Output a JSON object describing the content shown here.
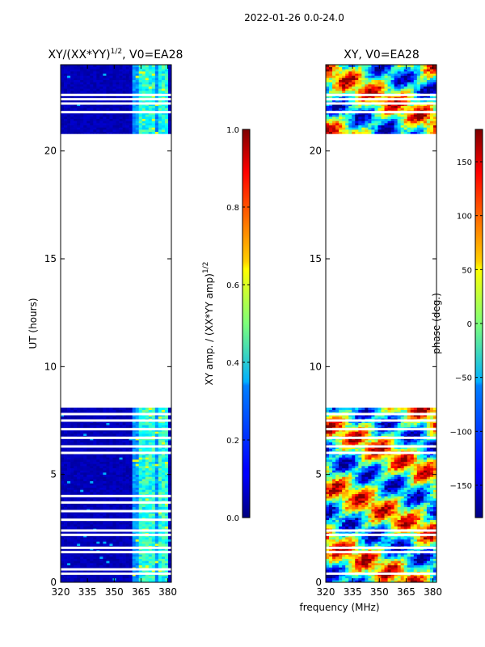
{
  "figure_title": "2022-01-26 0.0-24.0",
  "chart_data": [
    {
      "type": "heatmap",
      "title_main": "XY/(XX*YY)",
      "title_sup": "1/2",
      "title_tail": ", V0=EA28",
      "xlabel": "frequency (MHz)",
      "ylabel": "UT (hours)",
      "xlim": [
        320,
        382
      ],
      "ylim": [
        0,
        24
      ],
      "xticks": [
        "320",
        "335",
        "350",
        "365",
        "380"
      ],
      "yticks": [
        "0",
        "5",
        "10",
        "15",
        "20"
      ],
      "data_segments_ut_hours": [
        [
          0.0,
          8.1
        ],
        [
          20.8,
          24.0
        ]
      ],
      "blank_rows_ut_hours": [
        0.4,
        0.6,
        1.4,
        1.6,
        2.2,
        2.4,
        2.9,
        3.3,
        3.7,
        4.0,
        6.0,
        6.3,
        6.7,
        7.1,
        7.5,
        7.8,
        21.8,
        22.2,
        22.4,
        22.6
      ],
      "high_amplitude_band_mhz": [
        360,
        380
      ],
      "colorbar": {
        "label_main": "XY amp. / (XX*YY amp)",
        "label_sup": "1/2",
        "range": [
          0.0,
          1.0
        ],
        "ticks": [
          "0.0",
          "0.2",
          "0.4",
          "0.6",
          "0.8",
          "1.0"
        ],
        "colormap": "jet"
      }
    },
    {
      "type": "heatmap",
      "title": "XY, V0=EA28",
      "xlim": [
        320,
        382
      ],
      "ylim": [
        0,
        24
      ],
      "xticks": [
        "320",
        "335",
        "350",
        "365",
        "380"
      ],
      "yticks": [
        "0",
        "5",
        "10",
        "15",
        "20"
      ],
      "data_segments_ut_hours": [
        [
          0.0,
          8.1
        ],
        [
          20.8,
          24.0
        ]
      ],
      "blank_rows_ut_hours": [
        0.4,
        1.4,
        1.6,
        2.2,
        2.4,
        6.0,
        6.3,
        6.7,
        7.1,
        7.5,
        7.8,
        21.8,
        22.2,
        22.4,
        22.6
      ],
      "colorbar": {
        "label": "phase (deg.)",
        "range": [
          -180,
          180
        ],
        "ticks": [
          "-150",
          "-100",
          "-50",
          "0",
          "50",
          "100",
          "150"
        ],
        "colormap": "jet"
      }
    }
  ]
}
